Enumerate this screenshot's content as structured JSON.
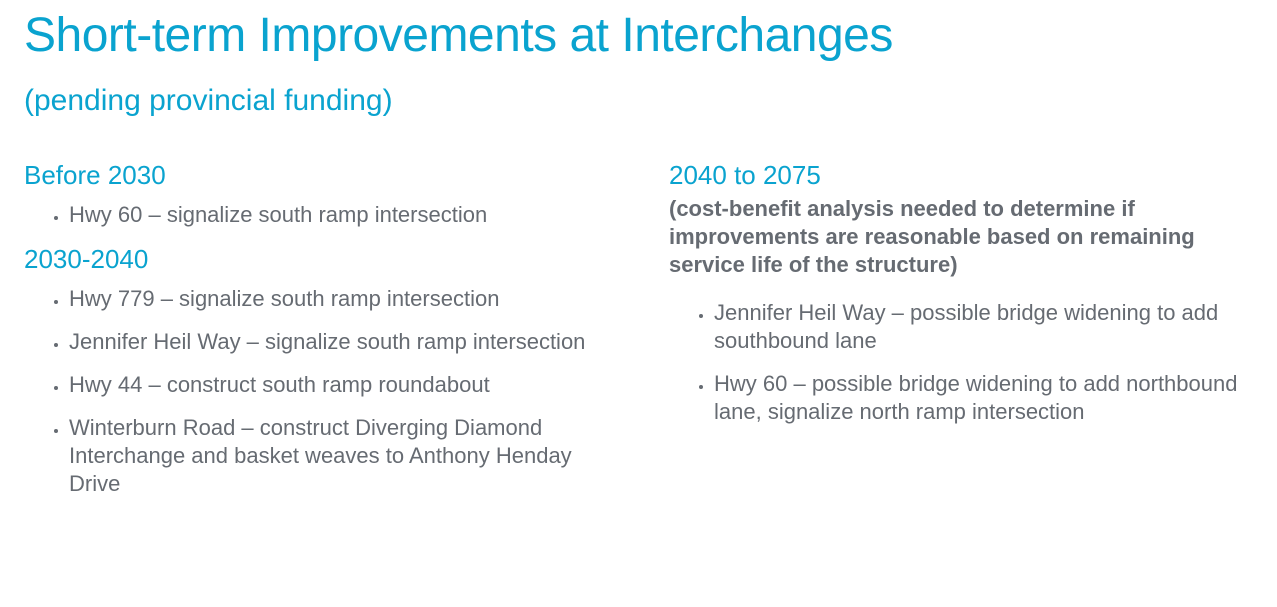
{
  "header": {
    "title": "Short-term Improvements at Interchanges",
    "subtitle": "(pending provincial funding)"
  },
  "left": {
    "sections": [
      {
        "heading": "Before 2030",
        "items": [
          "Hwy 60 – signalize south ramp intersection"
        ]
      },
      {
        "heading": "2030-2040",
        "items": [
          "Hwy 779 – signalize south ramp intersection",
          "Jennifer Heil Way – signalize south ramp intersection",
          "Hwy 44 – construct south ramp roundabout",
          "Winterburn Road – construct Diverging Diamond Interchange and basket weaves to Anthony Henday Drive"
        ]
      }
    ]
  },
  "right": {
    "heading": "2040 to 2075",
    "note": "(cost-benefit analysis needed to determine if improvements are reasonable based on remaining service life of the structure)",
    "items": [
      "Jennifer Heil Way – possible bridge widening to add southbound lane",
      "Hwy 60 – possible bridge widening to add northbound lane, signalize north ramp intersection"
    ]
  }
}
